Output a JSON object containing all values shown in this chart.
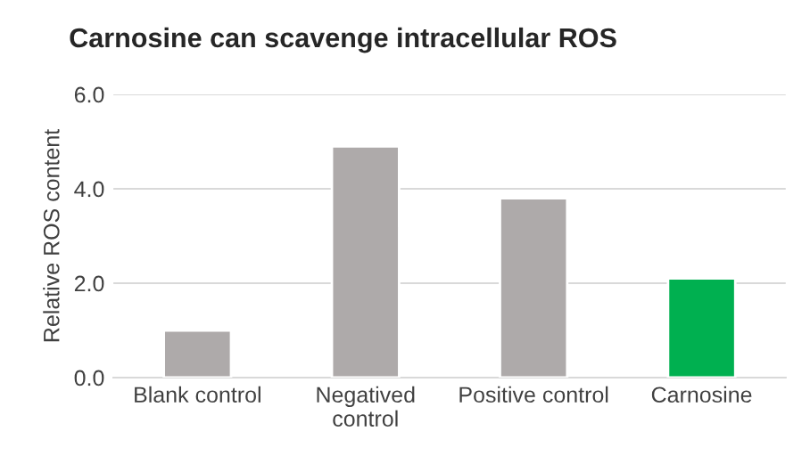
{
  "chart_data": {
    "type": "bar",
    "title": "Carnosine can scavenge intracellular ROS",
    "ylabel": "Relative ROS content",
    "categories": [
      "Blank control",
      "Negatived\ncontrol",
      "Positive control",
      "Carnosine"
    ],
    "values": [
      1.0,
      4.9,
      3.8,
      2.1
    ],
    "colors": [
      "#aeaaaa",
      "#aeaaaa",
      "#aeaaaa",
      "#00b050"
    ],
    "ylim": [
      0,
      6
    ],
    "yticks": [
      {
        "value": 0,
        "label": "0.0"
      },
      {
        "value": 2,
        "label": "2.0"
      },
      {
        "value": 4,
        "label": "4.0"
      },
      {
        "value": 6,
        "label": "6.0"
      }
    ],
    "grid": "y"
  }
}
